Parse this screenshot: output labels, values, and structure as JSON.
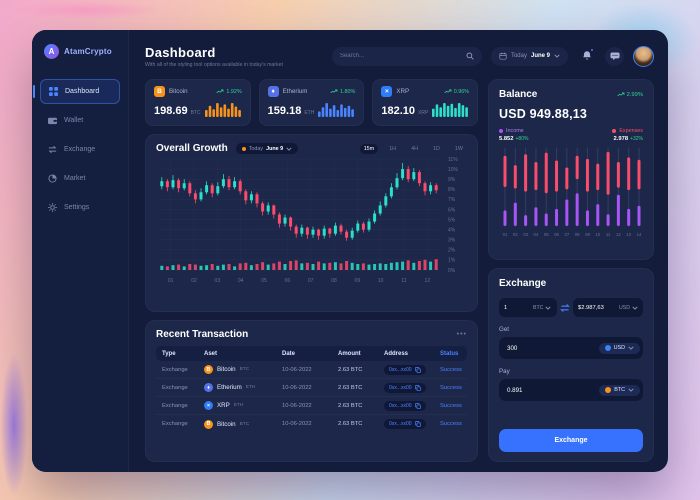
{
  "brand": {
    "name": "AtamCrypto"
  },
  "sidebar": {
    "items": [
      {
        "label": "Dashboard",
        "icon": "dashboard-icon",
        "active": true
      },
      {
        "label": "Wallet",
        "icon": "wallet-icon",
        "active": false
      },
      {
        "label": "Exchange",
        "icon": "exchange-icon",
        "active": false
      },
      {
        "label": "Market",
        "icon": "market-icon",
        "active": false
      },
      {
        "label": "Settings",
        "icon": "settings-icon",
        "active": false
      }
    ]
  },
  "header": {
    "title": "Dashboard",
    "subtitle": "With all of the styling tool options available in today's market",
    "search_placeholder": "Search...",
    "date_label": "Today",
    "date_value": "June 9"
  },
  "crypto_cards": [
    {
      "name": "Bitcoin",
      "glyph": "B",
      "icon_color": "#f7931a",
      "value": "198.69",
      "unit": "BTC",
      "change": "1.92%",
      "spark_color": "#f7931a",
      "spark": [
        0.5,
        0.8,
        0.55,
        1,
        0.7,
        0.9,
        0.6,
        1,
        0.75,
        0.5
      ]
    },
    {
      "name": "Etherium",
      "glyph": "♦",
      "icon_color": "#5671e8",
      "value": "159.18",
      "unit": "ETH",
      "change": "1.80%",
      "spark_color": "#4c83ff",
      "spark": [
        0.4,
        0.7,
        1,
        0.6,
        0.85,
        0.5,
        0.9,
        0.65,
        0.8,
        0.55
      ]
    },
    {
      "name": "XRP",
      "glyph": "×",
      "icon_color": "#2f7cf6",
      "value": "182.10",
      "unit": "XRP",
      "change": "0.96%",
      "spark_color": "#2ee0c9",
      "spark": [
        0.6,
        0.9,
        0.7,
        1,
        0.8,
        0.95,
        0.65,
        1,
        0.85,
        0.7
      ]
    }
  ],
  "growth": {
    "title": "Overall Growth",
    "filter_label": "Today",
    "filter_value": "June 9",
    "ranges": [
      "15m",
      "1H",
      "4H",
      "1D",
      "1W"
    ],
    "active_range": "15m"
  },
  "chart_data": [
    {
      "type": "candlestick",
      "title": "Overall Growth",
      "xticks": [
        "01",
        "02",
        "03",
        "04",
        "05",
        "06",
        "07",
        "08",
        "09",
        "10",
        "11",
        "12"
      ],
      "yticks": [
        "11%",
        "10%",
        "9%",
        "8%",
        "7%",
        "6%",
        "5%",
        "4%",
        "3%",
        "2%",
        "1%",
        "0%"
      ],
      "ylim": [
        0,
        11
      ],
      "grid": true,
      "up_color": "#2be0c8",
      "down_color": "#fc4b6c",
      "candles_ohlcv": [
        [
          8.3,
          9.2,
          8.0,
          8.8,
          0.35
        ],
        [
          8.8,
          9.0,
          7.8,
          8.2,
          0.3
        ],
        [
          8.2,
          9.4,
          8.0,
          8.9,
          0.4
        ],
        [
          8.9,
          9.1,
          7.7,
          8.1,
          0.45
        ],
        [
          8.1,
          9.0,
          7.9,
          8.6,
          0.3
        ],
        [
          8.6,
          8.8,
          7.3,
          7.6,
          0.5
        ],
        [
          7.6,
          7.9,
          6.6,
          7.0,
          0.45
        ],
        [
          7.0,
          8.1,
          6.8,
          7.7,
          0.35
        ],
        [
          7.7,
          8.8,
          7.5,
          8.4,
          0.4
        ],
        [
          8.4,
          8.6,
          7.2,
          7.6,
          0.5
        ],
        [
          7.6,
          8.7,
          7.4,
          8.3,
          0.35
        ],
        [
          8.3,
          9.5,
          8.1,
          9.0,
          0.45
        ],
        [
          9.0,
          9.3,
          7.9,
          8.2,
          0.5
        ],
        [
          8.2,
          9.2,
          8.0,
          8.8,
          0.3
        ],
        [
          8.8,
          9.0,
          7.5,
          7.8,
          0.55
        ],
        [
          7.8,
          8.0,
          6.5,
          6.9,
          0.6
        ],
        [
          6.9,
          7.8,
          6.6,
          7.5,
          0.4
        ],
        [
          7.5,
          7.7,
          6.2,
          6.6,
          0.5
        ],
        [
          6.6,
          6.8,
          5.4,
          5.8,
          0.65
        ],
        [
          5.8,
          6.7,
          5.5,
          6.4,
          0.45
        ],
        [
          6.4,
          6.5,
          5.1,
          5.5,
          0.55
        ],
        [
          5.5,
          5.7,
          4.2,
          4.6,
          0.7
        ],
        [
          4.6,
          5.5,
          4.3,
          5.2,
          0.5
        ],
        [
          5.2,
          5.3,
          3.9,
          4.3,
          0.75
        ],
        [
          4.3,
          4.5,
          3.2,
          3.6,
          0.8
        ],
        [
          3.6,
          4.5,
          3.3,
          4.2,
          0.55
        ],
        [
          4.2,
          4.3,
          3.1,
          3.5,
          0.6
        ],
        [
          3.5,
          4.3,
          3.2,
          4.0,
          0.5
        ],
        [
          4.0,
          4.1,
          3.0,
          3.4,
          0.7
        ],
        [
          3.4,
          4.4,
          3.1,
          4.1,
          0.55
        ],
        [
          4.1,
          4.2,
          3.2,
          3.6,
          0.6
        ],
        [
          3.6,
          4.7,
          3.4,
          4.4,
          0.65
        ],
        [
          4.4,
          4.6,
          3.5,
          3.8,
          0.55
        ],
        [
          3.8,
          4.0,
          2.9,
          3.2,
          0.75
        ],
        [
          3.2,
          4.2,
          3.0,
          3.9,
          0.6
        ],
        [
          3.9,
          4.9,
          3.7,
          4.6,
          0.5
        ],
        [
          4.6,
          4.8,
          3.7,
          4.0,
          0.55
        ],
        [
          4.0,
          5.1,
          3.8,
          4.8,
          0.45
        ],
        [
          4.8,
          5.9,
          4.6,
          5.6,
          0.5
        ],
        [
          5.6,
          6.8,
          5.4,
          6.4,
          0.55
        ],
        [
          6.4,
          7.6,
          6.2,
          7.3,
          0.5
        ],
        [
          7.3,
          8.6,
          7.1,
          8.2,
          0.6
        ],
        [
          8.2,
          9.6,
          8.0,
          9.1,
          0.65
        ],
        [
          9.1,
          10.6,
          8.9,
          10.0,
          0.7
        ],
        [
          10.0,
          10.3,
          8.7,
          9.0,
          0.8
        ],
        [
          9.0,
          10.1,
          8.8,
          9.7,
          0.6
        ],
        [
          9.7,
          9.9,
          8.3,
          8.6,
          0.75
        ],
        [
          8.6,
          8.8,
          7.4,
          7.8,
          0.85
        ],
        [
          7.8,
          8.7,
          7.5,
          8.4,
          0.7
        ],
        [
          8.4,
          8.6,
          7.6,
          7.9,
          0.9
        ]
      ]
    },
    {
      "type": "bar",
      "title": "Balance income vs expenses",
      "categories": [
        "01",
        "02",
        "03",
        "04",
        "05",
        "06",
        "07",
        "08",
        "09",
        "10",
        "11",
        "12",
        "13",
        "14"
      ],
      "series": [
        {
          "name": "Expenses",
          "color": "#fa4d6b",
          "top_offset": [
            0.1,
            0.22,
            0.08,
            0.18,
            0.06,
            0.16,
            0.25,
            0.1,
            0.14,
            0.2,
            0.05,
            0.18,
            0.12,
            0.15
          ],
          "values": [
            0.4,
            0.3,
            0.48,
            0.36,
            0.52,
            0.4,
            0.28,
            0.3,
            0.42,
            0.34,
            0.55,
            0.33,
            0.42,
            0.38
          ]
        },
        {
          "name": "Income",
          "color": "#a855f7",
          "values": [
            0.2,
            0.3,
            0.14,
            0.24,
            0.16,
            0.22,
            0.34,
            0.42,
            0.2,
            0.28,
            0.15,
            0.4,
            0.22,
            0.26
          ]
        }
      ],
      "legend_position": "top"
    }
  ],
  "transactions": {
    "title": "Recent Transaction",
    "more_label": "•••",
    "columns": [
      "Type",
      "Aset",
      "Date",
      "Amount",
      "Address",
      "Status"
    ],
    "rows": [
      {
        "type": "Exchange",
        "asset": "Bitcoin",
        "symbol": "BTC",
        "coin_glyph": "B",
        "coin_color": "#f7931a",
        "date": "10-06-2022",
        "amount": "2.63 BTC",
        "address": "0xx...xx00",
        "status": "Success"
      },
      {
        "type": "Exchange",
        "asset": "Etherium",
        "symbol": "ETH",
        "coin_glyph": "♦",
        "coin_color": "#5671e8",
        "date": "10-06-2022",
        "amount": "2.63 BTC",
        "address": "0xx...xx00",
        "status": "Success"
      },
      {
        "type": "Exchange",
        "asset": "XRP",
        "symbol": "ETH",
        "coin_glyph": "×",
        "coin_color": "#2f7cf6",
        "date": "10-06-2022",
        "amount": "2.63 BTC",
        "address": "0xx...xx00",
        "status": "Success"
      },
      {
        "type": "Exchange",
        "asset": "Bitcoin",
        "symbol": "BTC",
        "coin_glyph": "B",
        "coin_color": "#f7931a",
        "date": "10-06-2022",
        "amount": "2.63 BTC",
        "address": "0xx...xx00",
        "status": "Success"
      }
    ]
  },
  "balance": {
    "title": "Balance",
    "change": "2.99%",
    "amount": "USD 949.88,13",
    "income_label": "Income",
    "income_value": "5.852",
    "income_change": "+80%",
    "expenses_label": "Expenses",
    "expenses_value": "2.978",
    "expenses_change": "+32%"
  },
  "exchange_panel": {
    "title": "Exchange",
    "from_value": "1",
    "from_currency": "BTC",
    "to_value": "$2.987,63",
    "to_currency": "USD",
    "get_label": "Get",
    "get_value": "300",
    "get_currency": "USD",
    "get_coin_color": "#3b82f6",
    "pay_label": "Pay",
    "pay_value": "0.891",
    "pay_currency": "BTC",
    "pay_coin_color": "#f7931a",
    "button_label": "Exchange"
  },
  "colors": {
    "accent_blue": "#3772ff",
    "link_blue": "#4c83ff",
    "green": "#34d399",
    "red": "#fa4d6b",
    "teal": "#2be0c8",
    "orange": "#f7931a",
    "purple": "#a855f7"
  }
}
